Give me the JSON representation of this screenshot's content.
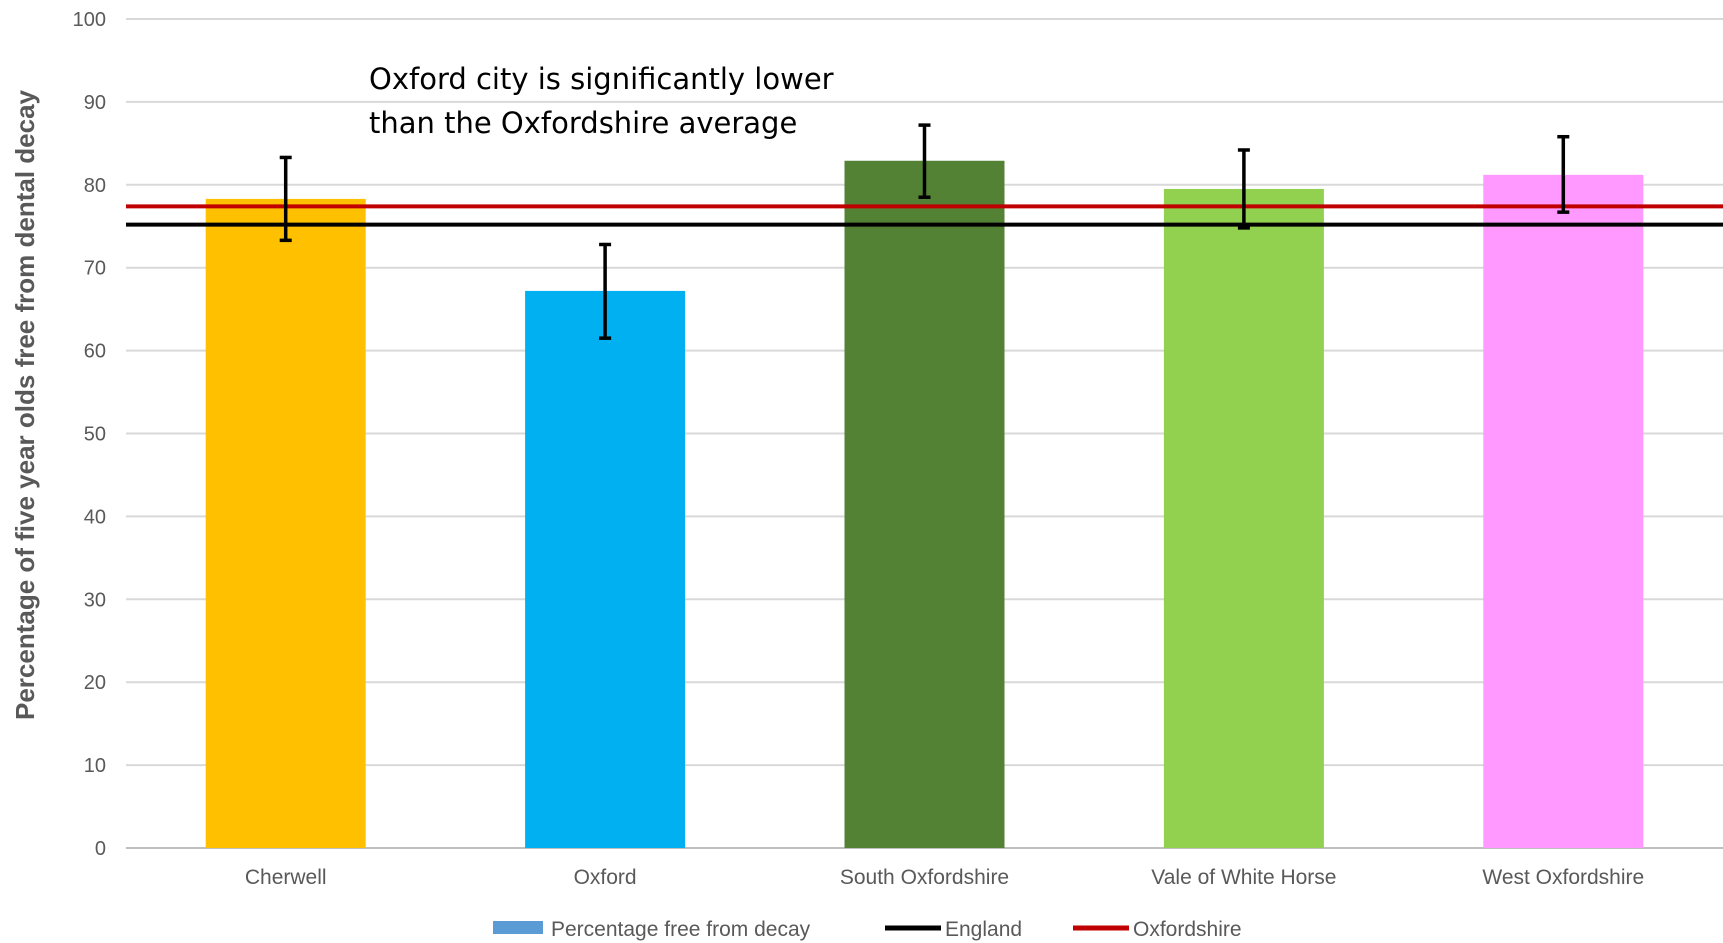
{
  "chart_data": {
    "type": "bar",
    "ylabel": "Percentage of five year olds free from dental decay",
    "ylim": [
      0,
      100
    ],
    "yticks": [
      0,
      10,
      20,
      30,
      40,
      50,
      60,
      70,
      80,
      90,
      100
    ],
    "grid": true,
    "categories": [
      "Cherwell",
      "Oxford",
      "South Oxfordshire",
      "Vale of White Horse",
      "West Oxfordshire"
    ],
    "series": [
      {
        "name": "Percentage free from decay",
        "legend_color": "#5b9bd5",
        "values": [
          78.3,
          67.2,
          82.9,
          79.5,
          81.2
        ],
        "bar_colors": [
          "#ffc000",
          "#00b0f0",
          "#548235",
          "#92d050",
          "#ff99ff"
        ],
        "error_low": [
          73.3,
          61.5,
          78.5,
          74.8,
          76.7
        ],
        "error_high": [
          83.3,
          72.8,
          87.2,
          84.2,
          85.8
        ]
      }
    ],
    "reference_lines": [
      {
        "name": "England",
        "value": 75.2,
        "color": "#000000"
      },
      {
        "name": "Oxfordshire",
        "value": 77.4,
        "color": "#c00000"
      }
    ],
    "annotation": [
      "Oxford city is significantly lower",
      "than the Oxfordshire average"
    ],
    "legend_position": "bottom"
  }
}
